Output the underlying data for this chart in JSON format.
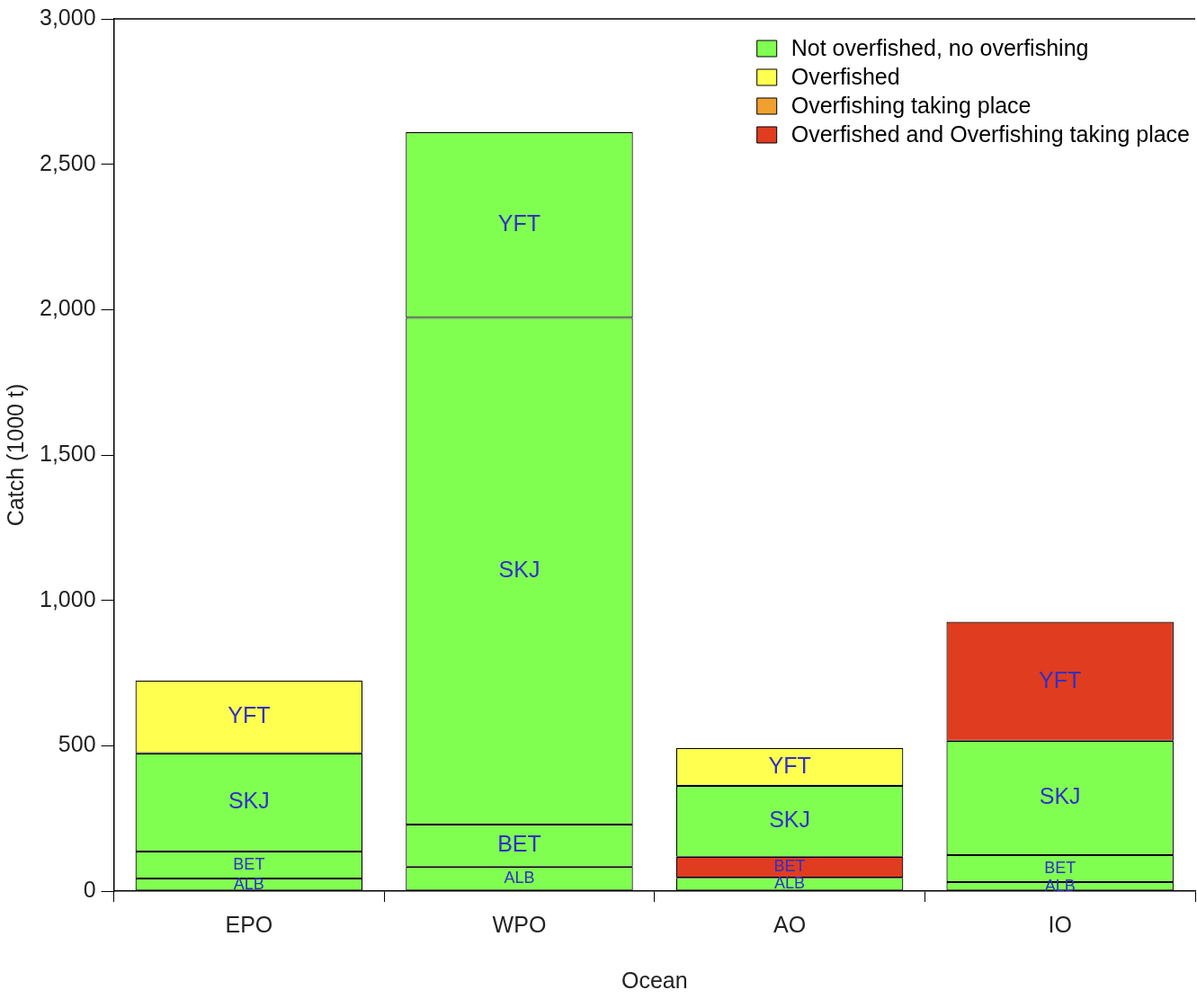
{
  "chart_data": {
    "type": "bar",
    "stacked": true,
    "xlabel": "Ocean",
    "ylabel": "Catch (1000 t)",
    "categories": [
      "EPO",
      "WPO",
      "AO",
      "IO"
    ],
    "series": [
      {
        "name": "ALB",
        "values": [
          43,
          84,
          46,
          31
        ],
        "colors": [
          "#80ff50",
          "#80ff50",
          "#80ff50",
          "#80ff50"
        ]
      },
      {
        "name": "BET",
        "values": [
          93,
          145,
          72,
          93
        ],
        "colors": [
          "#80ff50",
          "#80ff50",
          "#e03c20",
          "#80ff50"
        ]
      },
      {
        "name": "SKJ",
        "values": [
          338,
          1743,
          244,
          393
        ],
        "colors": [
          "#80ff50",
          "#80ff50",
          "#80ff50",
          "#80ff50"
        ]
      },
      {
        "name": "YFT",
        "values": [
          250,
          638,
          130,
          409
        ],
        "colors": [
          "#ffff50",
          "#80ff50",
          "#ffff50",
          "#e03c20"
        ]
      },
      {
        "name": "Not overfished, no overfishing",
        "color": "#80ff50",
        "values": [
          null,
          null,
          null,
          null
        ]
      },
      {
        "name": "Overfished",
        "color": "#ffff50",
        "values": [
          null,
          null,
          null,
          null
        ]
      },
      {
        "name": "Overfishing taking place",
        "color": "#f0a030",
        "values": [
          null,
          null,
          null,
          null
        ]
      },
      {
        "name": "Overfished and Overfishing taking place",
        "color": "#e03c20",
        "values": [
          null,
          null,
          null,
          null
        ]
      }
    ],
    "ylim": [
      0,
      3000
    ],
    "yticks": [
      0,
      500,
      {
        "value": 1000,
        "label": "1,000"
      },
      {
        "value": 1500,
        "label": "1,500"
      },
      {
        "value": 2000,
        "label": "2,000"
      },
      {
        "value": 2500,
        "label": "2,500"
      },
      {
        "value": 3000,
        "label": "3,000"
      }
    ],
    "grid": false,
    "legend": "top right"
  }
}
